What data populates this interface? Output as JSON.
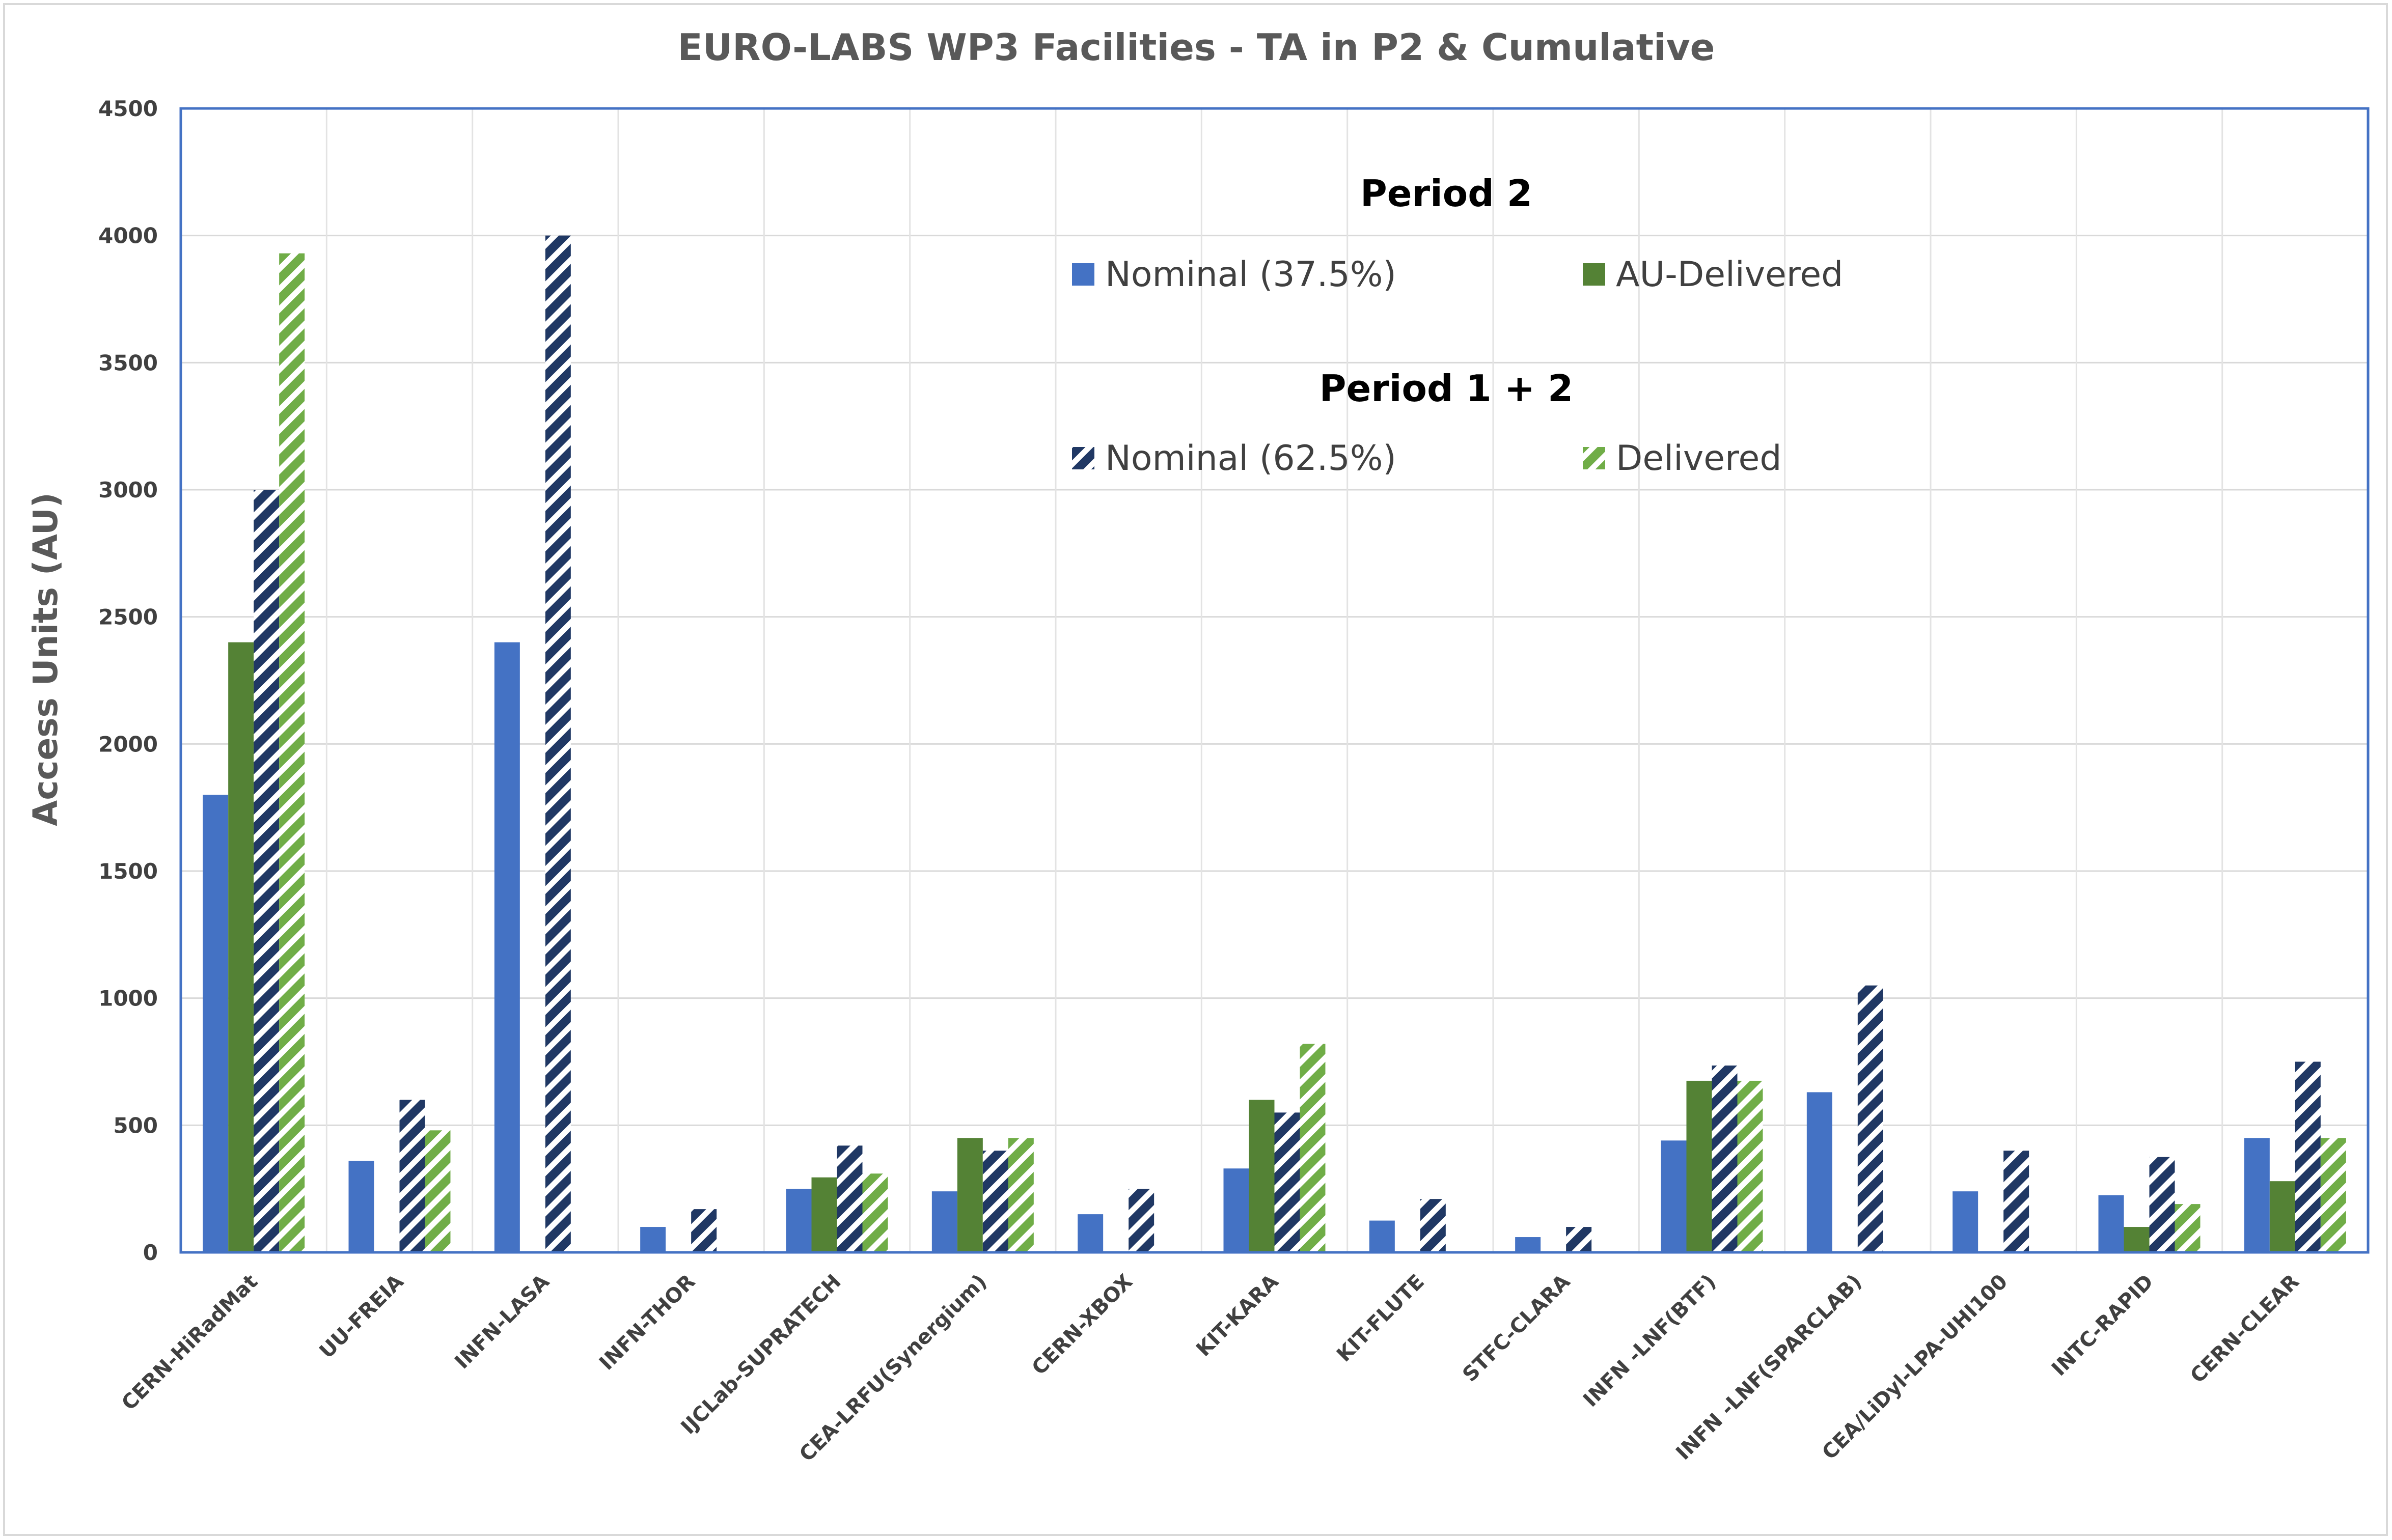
{
  "chart_data": {
    "type": "bar",
    "title": "EURO-LABS WP3 Facilities - TA in P2 & Cumulative",
    "ylabel": "Access Units (AU)",
    "xlabel": "",
    "ylim": [
      0,
      4500
    ],
    "yticks": [
      0,
      500,
      1000,
      1500,
      2000,
      2500,
      3000,
      3500,
      4000,
      4500
    ],
    "grid": true,
    "legend_position": "upper-right, inside plot",
    "categories": [
      "CERN-HiRadMat",
      "UU-FREIA",
      "INFN-LASA",
      "INFN-THOR",
      "IJCLab-SUPRATECH",
      "CEA-LRFU(Synergium)",
      "CERN-XBOX",
      "KIT-KARA",
      "KIT-FLUTE",
      "STFC-CLARA",
      "INFN -LNF(BTF)",
      "INFN -LNF(SPARCLAB)",
      "CEA/LiDyl-LPA-UHI100",
      "INTC-RAPID",
      "CERN-CLEAR"
    ],
    "legend_groups": [
      {
        "heading": "Period 2",
        "series_names": [
          "Nominal (37.5%)",
          "AU-Delivered"
        ]
      },
      {
        "heading": "Period 1 + 2",
        "series_names": [
          "Nominal (62.5%)",
          "Delivered"
        ]
      }
    ],
    "series": [
      {
        "name": "Nominal (37.5%)",
        "color": "#4472c4",
        "pattern": "solid",
        "values": [
          1800,
          360,
          2400,
          100,
          250,
          240,
          150,
          330,
          125,
          60,
          440,
          630,
          240,
          225,
          450
        ]
      },
      {
        "name": "AU-Delivered",
        "color": "#548235",
        "pattern": "solid",
        "values": [
          2400,
          0,
          0,
          0,
          295,
          450,
          0,
          600,
          0,
          0,
          675,
          0,
          0,
          100,
          280
        ]
      },
      {
        "name": "Nominal (62.5%)",
        "color": "#203864",
        "pattern": "diagonal-stripes",
        "values": [
          3000,
          600,
          4000,
          170,
          420,
          400,
          250,
          550,
          210,
          100,
          735,
          1050,
          400,
          375,
          750
        ]
      },
      {
        "name": "Delivered",
        "color": "#70ad47",
        "pattern": "diagonal-stripes",
        "values": [
          3930,
          480,
          0,
          0,
          310,
          450,
          0,
          820,
          0,
          0,
          675,
          0,
          0,
          190,
          450
        ]
      }
    ]
  }
}
